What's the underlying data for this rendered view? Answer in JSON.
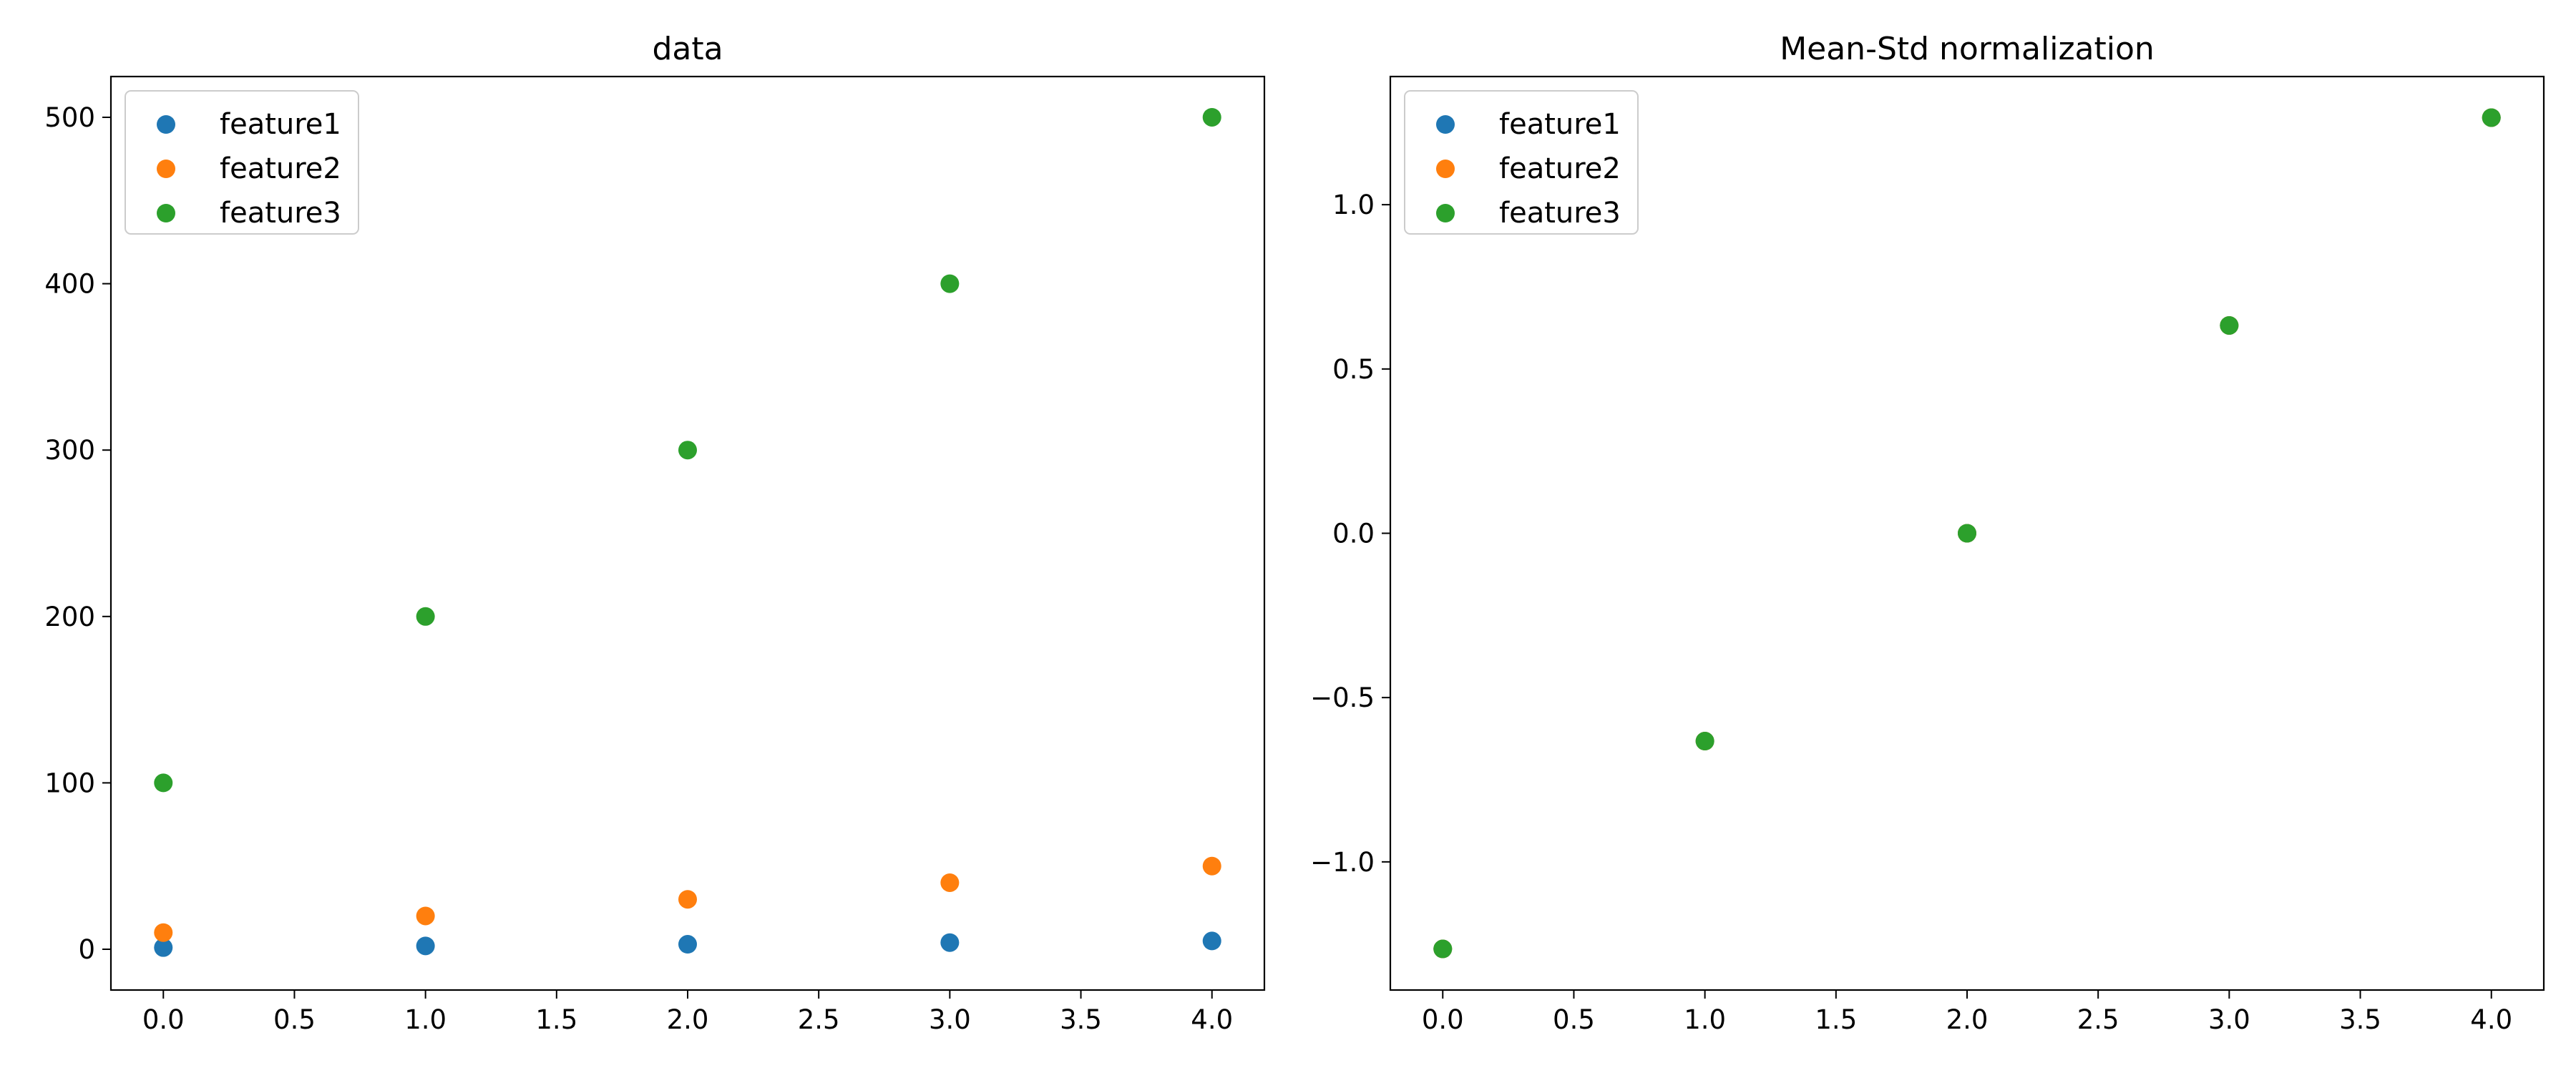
{
  "chart_data": [
    {
      "type": "scatter",
      "title": "data",
      "xlabel": "",
      "ylabel": "",
      "xlim": [
        -0.2,
        4.2
      ],
      "ylim": [
        -24.5,
        524.5
      ],
      "xticks": [
        0.0,
        0.5,
        1.0,
        1.5,
        2.0,
        2.5,
        3.0,
        3.5,
        4.0
      ],
      "xtick_labels": [
        "0.0",
        "0.5",
        "1.0",
        "1.5",
        "2.0",
        "2.5",
        "3.0",
        "3.5",
        "4.0"
      ],
      "yticks": [
        0,
        100,
        200,
        300,
        400,
        500
      ],
      "ytick_labels": [
        "0",
        "100",
        "200",
        "300",
        "400",
        "500"
      ],
      "grid": false,
      "legend": "top-left",
      "x": [
        0,
        1,
        2,
        3,
        4
      ],
      "series": [
        {
          "name": "feature1",
          "color": "#1f77b4",
          "values": [
            1,
            2,
            3,
            4,
            5
          ]
        },
        {
          "name": "feature2",
          "color": "#ff7f0e",
          "values": [
            10,
            20,
            30,
            40,
            50
          ]
        },
        {
          "name": "feature3",
          "color": "#2ca02c",
          "values": [
            100,
            200,
            300,
            400,
            500
          ]
        }
      ]
    },
    {
      "type": "scatter",
      "title": "Mean-Std normalization",
      "xlabel": "",
      "ylabel": "",
      "xlim": [
        -0.2,
        4.2
      ],
      "ylim": [
        -1.39,
        1.39
      ],
      "xticks": [
        0.0,
        0.5,
        1.0,
        1.5,
        2.0,
        2.5,
        3.0,
        3.5,
        4.0
      ],
      "xtick_labels": [
        "0.0",
        "0.5",
        "1.0",
        "1.5",
        "2.0",
        "2.5",
        "3.0",
        "3.5",
        "4.0"
      ],
      "yticks": [
        -1.0,
        -0.5,
        0.0,
        0.5,
        1.0
      ],
      "ytick_labels": [
        "−1.0",
        "−0.5",
        "0.0",
        "0.5",
        "1.0"
      ],
      "grid": false,
      "legend": "top-left",
      "x": [
        0,
        1,
        2,
        3,
        4
      ],
      "series": [
        {
          "name": "feature1",
          "color": "#1f77b4",
          "values": [
            -1.2649,
            -0.6325,
            0.0,
            0.6325,
            1.2649
          ]
        },
        {
          "name": "feature2",
          "color": "#ff7f0e",
          "values": [
            -1.2649,
            -0.6325,
            0.0,
            0.6325,
            1.2649
          ]
        },
        {
          "name": "feature3",
          "color": "#2ca02c",
          "values": [
            -1.2649,
            -0.6325,
            0.0,
            0.6325,
            1.2649
          ]
        }
      ]
    }
  ]
}
